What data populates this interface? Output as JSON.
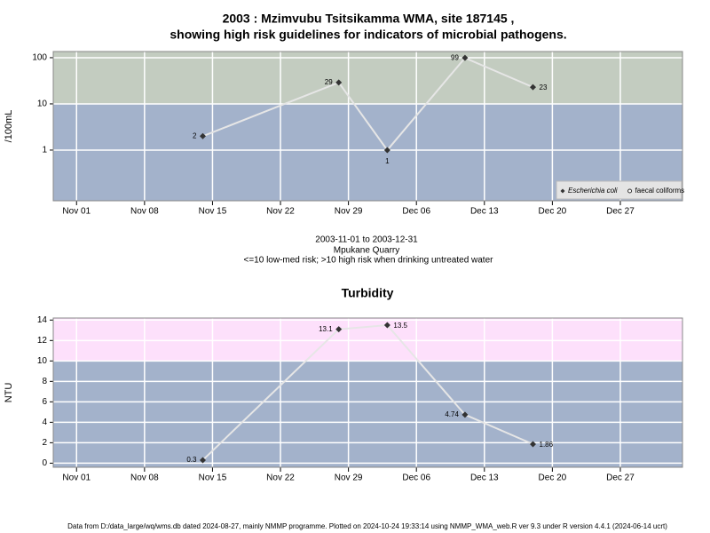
{
  "chart_data": [
    {
      "type": "line",
      "title": "2003 : Mzimvubu Tsitsikamma WMA, site 187145 ,",
      "subtitle": "showing high risk guidelines for indicators of microbial pathogens.",
      "caption": [
        "2003-11-01 to 2003-12-31",
        "Mpukane Quarry",
        "<=10 low-med risk; >10 high risk when drinking untreated water"
      ],
      "y_label": "/100mL",
      "log_y": true,
      "grid": true,
      "threshold": 10,
      "band_colors": {
        "above": "#c3ccc0",
        "below": "#a3b2cb"
      },
      "x": [
        "2003-11-14",
        "2003-11-28",
        "2003-12-03",
        "2003-12-11",
        "2003-12-18"
      ],
      "series": [
        {
          "name": "Escherichia coli",
          "color": "#333333",
          "values": [
            2,
            29,
            1,
            99,
            23
          ]
        },
        {
          "name": "faecal coliforms",
          "color": "#ffffff",
          "values": [
            null,
            null,
            null,
            null,
            null
          ]
        }
      ],
      "xlim": [
        "2003-11-01",
        "2003-12-31"
      ],
      "xticks": [
        {
          "value": "2003-11-01",
          "label": "Nov 01"
        },
        {
          "value": "2003-11-08",
          "label": "Nov 08"
        },
        {
          "value": "2003-11-15",
          "label": "Nov 15"
        },
        {
          "value": "2003-11-22",
          "label": "Nov 22"
        },
        {
          "value": "2003-11-29",
          "label": "Nov 29"
        },
        {
          "value": "2003-12-06",
          "label": "Dec 06"
        },
        {
          "value": "2003-12-13",
          "label": "Dec 13"
        },
        {
          "value": "2003-12-20",
          "label": "Dec 20"
        },
        {
          "value": "2003-12-27",
          "label": "Dec 27"
        }
      ],
      "ylim": [
        0.08,
        136
      ],
      "yticks": [
        1,
        10,
        100
      ],
      "legend": "bottom right"
    },
    {
      "type": "line",
      "title": "Turbidity",
      "y_label": "NTU",
      "log_y": false,
      "grid": true,
      "threshold": 10,
      "band_colors": {
        "above": "#fde0fb",
        "below": "#a3b2cb"
      },
      "x": [
        "2003-11-14",
        "2003-11-28",
        "2003-12-03",
        "2003-12-11",
        "2003-12-18"
      ],
      "series": [
        {
          "name": "Turbidity",
          "color": "#333333",
          "values": [
            0.3,
            13.1,
            13.5,
            4.74,
            1.86
          ]
        }
      ],
      "xlim": [
        "2003-11-01",
        "2003-12-31"
      ],
      "xticks": [
        {
          "value": "2003-11-01",
          "label": "Nov 01"
        },
        {
          "value": "2003-11-08",
          "label": "Nov 08"
        },
        {
          "value": "2003-11-15",
          "label": "Nov 15"
        },
        {
          "value": "2003-11-22",
          "label": "Nov 22"
        },
        {
          "value": "2003-11-29",
          "label": "Nov 29"
        },
        {
          "value": "2003-12-06",
          "label": "Dec 06"
        },
        {
          "value": "2003-12-13",
          "label": "Dec 13"
        },
        {
          "value": "2003-12-20",
          "label": "Dec 20"
        },
        {
          "value": "2003-12-27",
          "label": "Dec 27"
        }
      ],
      "ylim": [
        -0.4,
        14.2
      ],
      "yticks": [
        0,
        2,
        4,
        6,
        8,
        10,
        12,
        14
      ]
    }
  ],
  "footer": "Data from D:/data_large/wq/wms.db dated 2024-08-27, mainly NMMP programme. Plotted on 2024-10-24 19:33:14 using NMMP_WMA_web.R ver 9.3 under R version 4.4.1 (2024-06-14 ucrt)"
}
